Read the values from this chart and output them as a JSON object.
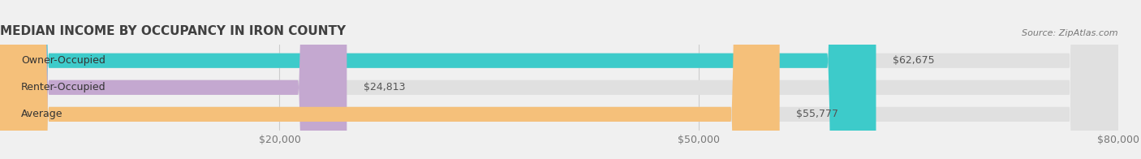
{
  "title": "MEDIAN INCOME BY OCCUPANCY IN IRON COUNTY",
  "source": "Source: ZipAtlas.com",
  "categories": [
    "Owner-Occupied",
    "Renter-Occupied",
    "Average"
  ],
  "values": [
    62675,
    24813,
    55777
  ],
  "labels": [
    "$62,675",
    "$24,813",
    "$55,777"
  ],
  "bar_colors": [
    "#3dcbca",
    "#c4a8d0",
    "#f5c07a"
  ],
  "background_color": "#f0f0f0",
  "bar_bg_color": "#e0e0e0",
  "xlim": [
    0,
    80000
  ],
  "xticks": [
    20000,
    50000,
    80000
  ],
  "xtick_labels": [
    "$20,000",
    "$50,000",
    "$80,000"
  ],
  "title_fontsize": 11,
  "source_fontsize": 8,
  "label_fontsize": 9,
  "tick_fontsize": 9,
  "bar_height": 0.55,
  "bar_label_color": "#555555",
  "title_color": "#404040",
  "tick_color": "#777777",
  "source_color": "#777777"
}
